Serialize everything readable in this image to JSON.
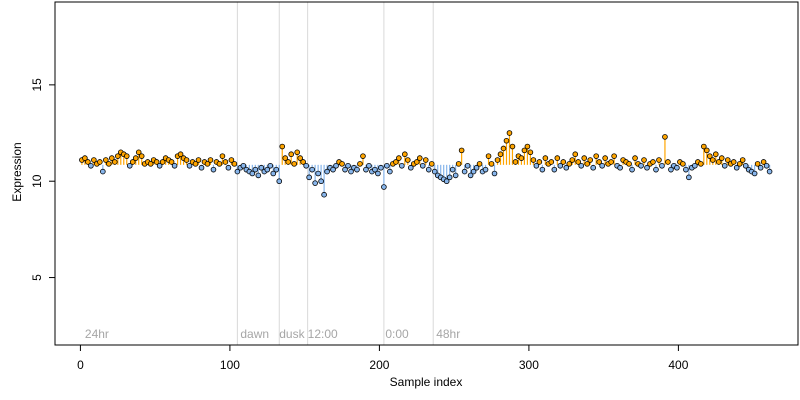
{
  "chart_data": {
    "type": "scatter",
    "xlabel": "Sample index",
    "ylabel": "Expression",
    "xlim": [
      -17,
      480
    ],
    "ylim": [
      1.5,
      19.3
    ],
    "x_ticks": [
      0,
      100,
      200,
      300,
      400
    ],
    "y_ticks": [
      5,
      10,
      15
    ],
    "baseline": 10.85,
    "vlines": [
      105,
      133,
      152,
      203,
      236
    ],
    "period_labels": [
      {
        "x": 3,
        "text": "24hr"
      },
      {
        "x": 107,
        "text": "dawn"
      },
      {
        "x": 133,
        "text": "dusk"
      },
      {
        "x": 152,
        "text": "12:00"
      },
      {
        "x": 204,
        "text": "0:00"
      },
      {
        "x": 238,
        "text": "48hr"
      }
    ],
    "colors": {
      "above": "#ffa500",
      "below": "#87b5eb",
      "point_stroke": "#000000",
      "vline": "#d9d9d9",
      "label": "#a6a6a6"
    },
    "points": [
      [
        1,
        11.1
      ],
      [
        3,
        11.2
      ],
      [
        5,
        11.0
      ],
      [
        7,
        10.8
      ],
      [
        9,
        11.1
      ],
      [
        11,
        10.9
      ],
      [
        13,
        11.0
      ],
      [
        15,
        10.5
      ],
      [
        17,
        11.1
      ],
      [
        19,
        10.9
      ],
      [
        21,
        11.2
      ],
      [
        23,
        11.0
      ],
      [
        25,
        11.3
      ],
      [
        27,
        11.5
      ],
      [
        29,
        11.4
      ],
      [
        31,
        11.3
      ],
      [
        33,
        10.8
      ],
      [
        35,
        11.0
      ],
      [
        37,
        11.2
      ],
      [
        39,
        11.5
      ],
      [
        41,
        11.3
      ],
      [
        43,
        10.9
      ],
      [
        45,
        11.0
      ],
      [
        47,
        10.9
      ],
      [
        49,
        11.1
      ],
      [
        51,
        11.0
      ],
      [
        53,
        10.8
      ],
      [
        55,
        11.0
      ],
      [
        57,
        11.2
      ],
      [
        59,
        11.1
      ],
      [
        61,
        11.0
      ],
      [
        63,
        10.8
      ],
      [
        65,
        11.3
      ],
      [
        67,
        11.4
      ],
      [
        69,
        11.2
      ],
      [
        71,
        11.1
      ],
      [
        73,
        10.8
      ],
      [
        75,
        11.0
      ],
      [
        77,
        10.9
      ],
      [
        79,
        11.1
      ],
      [
        81,
        10.7
      ],
      [
        83,
        11.0
      ],
      [
        85,
        10.9
      ],
      [
        87,
        11.1
      ],
      [
        89,
        10.6
      ],
      [
        91,
        11.0
      ],
      [
        93,
        10.9
      ],
      [
        95,
        11.3
      ],
      [
        97,
        11.0
      ],
      [
        99,
        10.7
      ],
      [
        101,
        11.1
      ],
      [
        103,
        10.9
      ],
      [
        105,
        10.5
      ],
      [
        107,
        10.7
      ],
      [
        109,
        10.8
      ],
      [
        111,
        10.6
      ],
      [
        113,
        10.5
      ],
      [
        115,
        10.4
      ],
      [
        117,
        10.6
      ],
      [
        119,
        10.3
      ],
      [
        121,
        10.7
      ],
      [
        123,
        10.5
      ],
      [
        125,
        10.6
      ],
      [
        127,
        10.8
      ],
      [
        129,
        10.4
      ],
      [
        131,
        10.6
      ],
      [
        133,
        10.0
      ],
      [
        135,
        11.8
      ],
      [
        137,
        11.2
      ],
      [
        139,
        11.0
      ],
      [
        141,
        11.4
      ],
      [
        143,
        10.9
      ],
      [
        145,
        11.5
      ],
      [
        147,
        11.2
      ],
      [
        149,
        11.0
      ],
      [
        151,
        10.8
      ],
      [
        153,
        10.2
      ],
      [
        155,
        10.6
      ],
      [
        157,
        9.9
      ],
      [
        159,
        10.4
      ],
      [
        161,
        10.0
      ],
      [
        163,
        9.3
      ],
      [
        165,
        10.5
      ],
      [
        167,
        10.7
      ],
      [
        169,
        10.6
      ],
      [
        171,
        10.8
      ],
      [
        173,
        11.0
      ],
      [
        175,
        10.9
      ],
      [
        177,
        10.6
      ],
      [
        179,
        10.8
      ],
      [
        181,
        10.5
      ],
      [
        183,
        10.7
      ],
      [
        185,
        10.6
      ],
      [
        187,
        10.9
      ],
      [
        189,
        11.3
      ],
      [
        191,
        10.6
      ],
      [
        193,
        10.8
      ],
      [
        195,
        10.5
      ],
      [
        197,
        10.6
      ],
      [
        199,
        10.4
      ],
      [
        201,
        10.7
      ],
      [
        203,
        9.7
      ],
      [
        205,
        10.8
      ],
      [
        207,
        10.5
      ],
      [
        209,
        10.9
      ],
      [
        211,
        11.0
      ],
      [
        213,
        11.2
      ],
      [
        215,
        10.8
      ],
      [
        217,
        11.4
      ],
      [
        219,
        11.1
      ],
      [
        221,
        10.7
      ],
      [
        223,
        10.9
      ],
      [
        225,
        11.0
      ],
      [
        227,
        11.2
      ],
      [
        229,
        10.8
      ],
      [
        231,
        11.1
      ],
      [
        233,
        10.6
      ],
      [
        235,
        10.9
      ],
      [
        237,
        10.5
      ],
      [
        239,
        10.3
      ],
      [
        241,
        10.2
      ],
      [
        243,
        10.1
      ],
      [
        245,
        10.0
      ],
      [
        247,
        10.2
      ],
      [
        249,
        10.6
      ],
      [
        251,
        10.3
      ],
      [
        253,
        10.9
      ],
      [
        255,
        11.6
      ],
      [
        257,
        10.5
      ],
      [
        259,
        10.8
      ],
      [
        261,
        10.3
      ],
      [
        263,
        10.5
      ],
      [
        265,
        10.7
      ],
      [
        267,
        10.9
      ],
      [
        269,
        10.5
      ],
      [
        271,
        10.6
      ],
      [
        273,
        11.3
      ],
      [
        275,
        10.9
      ],
      [
        277,
        10.4
      ],
      [
        279,
        11.1
      ],
      [
        281,
        11.4
      ],
      [
        283,
        11.7
      ],
      [
        285,
        12.1
      ],
      [
        287,
        12.5
      ],
      [
        289,
        11.8
      ],
      [
        291,
        11.0
      ],
      [
        293,
        11.3
      ],
      [
        295,
        11.2
      ],
      [
        297,
        11.6
      ],
      [
        299,
        11.8
      ],
      [
        301,
        11.5
      ],
      [
        303,
        11.1
      ],
      [
        305,
        10.8
      ],
      [
        307,
        11.0
      ],
      [
        309,
        10.6
      ],
      [
        311,
        11.2
      ],
      [
        313,
        10.9
      ],
      [
        315,
        11.0
      ],
      [
        317,
        10.6
      ],
      [
        319,
        11.2
      ],
      [
        321,
        10.8
      ],
      [
        323,
        11.0
      ],
      [
        325,
        10.7
      ],
      [
        327,
        10.9
      ],
      [
        329,
        11.1
      ],
      [
        331,
        11.4
      ],
      [
        333,
        11.0
      ],
      [
        335,
        10.8
      ],
      [
        337,
        11.2
      ],
      [
        339,
        10.9
      ],
      [
        341,
        11.1
      ],
      [
        343,
        10.7
      ],
      [
        345,
        11.3
      ],
      [
        347,
        11.0
      ],
      [
        349,
        10.8
      ],
      [
        351,
        11.2
      ],
      [
        353,
        10.9
      ],
      [
        355,
        11.0
      ],
      [
        357,
        11.3
      ],
      [
        359,
        10.8
      ],
      [
        361,
        10.7
      ],
      [
        363,
        11.1
      ],
      [
        365,
        11.0
      ],
      [
        367,
        10.9
      ],
      [
        369,
        10.6
      ],
      [
        371,
        11.2
      ],
      [
        373,
        10.9
      ],
      [
        375,
        10.8
      ],
      [
        377,
        11.1
      ],
      [
        379,
        10.7
      ],
      [
        381,
        10.9
      ],
      [
        383,
        11.0
      ],
      [
        385,
        10.6
      ],
      [
        387,
        11.1
      ],
      [
        389,
        10.8
      ],
      [
        391,
        12.3
      ],
      [
        393,
        11.0
      ],
      [
        395,
        10.6
      ],
      [
        397,
        10.8
      ],
      [
        399,
        10.7
      ],
      [
        401,
        11.0
      ],
      [
        403,
        10.9
      ],
      [
        405,
        10.6
      ],
      [
        407,
        10.2
      ],
      [
        409,
        10.7
      ],
      [
        411,
        10.8
      ],
      [
        413,
        11.0
      ],
      [
        415,
        10.9
      ],
      [
        417,
        11.8
      ],
      [
        419,
        11.6
      ],
      [
        421,
        11.3
      ],
      [
        423,
        11.1
      ],
      [
        425,
        11.4
      ],
      [
        427,
        11.0
      ],
      [
        429,
        11.2
      ],
      [
        431,
        10.8
      ],
      [
        433,
        11.1
      ],
      [
        435,
        10.9
      ],
      [
        437,
        11.0
      ],
      [
        439,
        10.7
      ],
      [
        441,
        10.9
      ],
      [
        443,
        11.1
      ],
      [
        445,
        10.8
      ],
      [
        447,
        10.6
      ],
      [
        449,
        10.5
      ],
      [
        451,
        10.4
      ],
      [
        453,
        10.9
      ],
      [
        455,
        10.7
      ],
      [
        457,
        11.0
      ],
      [
        459,
        10.8
      ],
      [
        461,
        10.5
      ]
    ]
  }
}
